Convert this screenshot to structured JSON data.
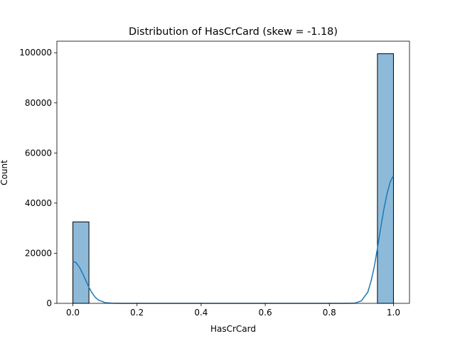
{
  "chart_data": {
    "type": "bar",
    "title": "Distribution of HasCrCard (skew = -1.18)",
    "xlabel": "HasCrCard",
    "ylabel": "Count",
    "xlim": [
      -0.05,
      1.05
    ],
    "ylim": [
      0,
      104600
    ],
    "xticks": [
      "0.0",
      "0.2",
      "0.4",
      "0.6",
      "0.8",
      "1.0"
    ],
    "xtick_values": [
      0,
      0.2,
      0.4,
      0.6,
      0.8,
      1.0
    ],
    "yticks": [
      "0",
      "20000",
      "40000",
      "60000",
      "80000",
      "100000"
    ],
    "ytick_values": [
      0,
      20000,
      40000,
      60000,
      80000,
      100000
    ],
    "grid": false,
    "bins": [
      {
        "x0": 0.0,
        "x1": 0.05,
        "count": 32500
      },
      {
        "x0": 0.95,
        "x1": 1.0,
        "count": 99600
      }
    ],
    "kde": {
      "x": [
        0.0,
        0.01,
        0.02,
        0.03,
        0.04,
        0.05,
        0.06,
        0.07,
        0.08,
        0.1,
        0.12,
        0.15,
        0.2,
        0.5,
        0.8,
        0.85,
        0.88,
        0.9,
        0.92,
        0.93,
        0.94,
        0.95,
        0.96,
        0.97,
        0.98,
        0.99,
        1.0
      ],
      "y": [
        16800,
        16200,
        14500,
        12000,
        9200,
        6400,
        4100,
        2400,
        1300,
        300,
        60,
        0,
        0,
        0,
        0,
        0,
        60,
        1000,
        4500,
        8800,
        14500,
        22000,
        30000,
        37500,
        43800,
        48500,
        51000
      ]
    },
    "colors": {
      "bar_fill": "#8ebad9",
      "bar_edge": "#000000",
      "kde_line": "#1f77b4"
    }
  }
}
